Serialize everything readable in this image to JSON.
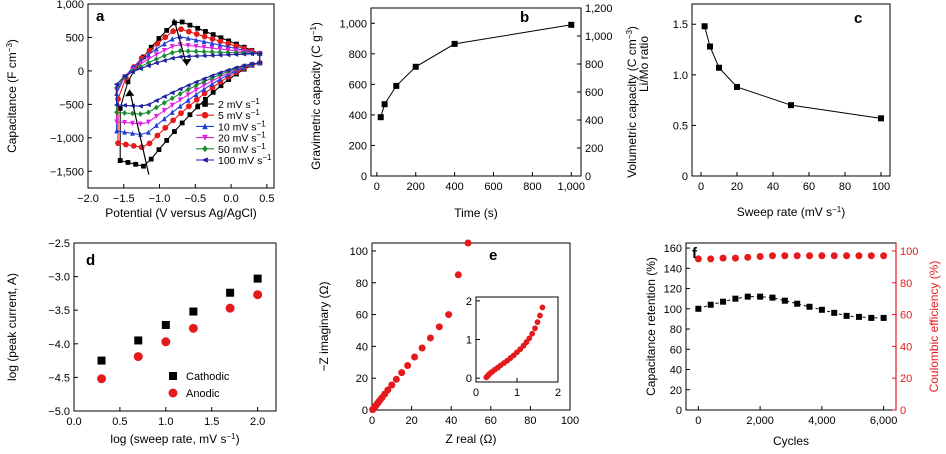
{
  "chart_data": [
    {
      "panel": "a",
      "type": "line",
      "xlabel": "Potential (V versus Ag/AgCl)",
      "ylabel": "Capacitance (F cm",
      "ylabel_sup": "−3",
      "ylabel_close": ")",
      "xlim": [
        -2.0,
        0.6
      ],
      "ylim": [
        -1750,
        1000
      ],
      "xticks": [
        -2.0,
        -1.5,
        -1.0,
        -0.5,
        0.0,
        0.5
      ],
      "xtick_labels": [
        "−2.0",
        "−1.5",
        "−1.0",
        "−0.5",
        "0.0",
        "0.5"
      ],
      "yticks": [
        1000,
        500,
        0,
        -500,
        -1000,
        -1500
      ],
      "ytick_labels": [
        "1,000",
        "500",
        "0",
        "−500",
        "−1,000",
        "−1,500"
      ],
      "legend_position": "bottom-right",
      "series": [
        {
          "name": "2 mV s",
          "sup": "−1",
          "color": "#000000",
          "marker": "square",
          "upper_peak": 760,
          "lower_peak": -1430,
          "lower_end": -1340,
          "start_up": -560,
          "x_min": -1.55
        },
        {
          "name": "5 mV s",
          "sup": "−1",
          "color": "#e41a1c",
          "marker": "circle",
          "upper_peak": 640,
          "lower_peak": -1150,
          "lower_end": -1080,
          "start_up": -420,
          "x_min": -1.58
        },
        {
          "name": "10 mV s",
          "sup": "−1",
          "color": "#1f3ed8",
          "marker": "triangle",
          "upper_peak": 520,
          "lower_peak": -960,
          "lower_end": -900,
          "start_up": -340,
          "x_min": -1.6
        },
        {
          "name": "20 mV s",
          "sup": "−1",
          "color": "#e020e0",
          "marker": "triangle-down",
          "upper_peak": 400,
          "lower_peak": -800,
          "lower_end": -760,
          "start_up": -290,
          "x_min": -1.6
        },
        {
          "name": "50 mV s",
          "sup": "−1",
          "color": "#1a8a30",
          "marker": "diamond",
          "upper_peak": 300,
          "lower_peak": -650,
          "lower_end": -620,
          "start_up": -250,
          "x_min": -1.6
        },
        {
          "name": "100 mV s",
          "sup": "−1",
          "color": "#2020a0",
          "marker": "triangle-left",
          "upper_peak": 210,
          "lower_peak": -530,
          "lower_end": -510,
          "start_up": -200,
          "x_min": -1.6
        }
      ]
    },
    {
      "panel": "b",
      "type": "line",
      "xlabel": "Time (s)",
      "ylabel": "Gravimetric capacity (C g",
      "ylabel_sup": "−1",
      "ylabel_close": ")",
      "ylabel_right": "Volumetric capacity (C cm",
      "ylabel_right_sup": "−3",
      "ylabel_right_close": ")",
      "xlim": [
        -30,
        1050
      ],
      "ylim": [
        0,
        1100
      ],
      "ylim_right": [
        0,
        1200
      ],
      "xticks": [
        0,
        200,
        400,
        600,
        800,
        1000
      ],
      "xtick_labels": [
        "0",
        "200",
        "400",
        "600",
        "800",
        "1,000"
      ],
      "yticks": [
        0,
        200,
        400,
        600,
        800,
        1000
      ],
      "ytick_labels": [
        "0",
        "200",
        "400",
        "600",
        "800",
        "1,000"
      ],
      "yticks_right": [
        0,
        200,
        400,
        600,
        800,
        1000,
        1200
      ],
      "ytick_labels_right": [
        "0",
        "200",
        "400",
        "600",
        "800",
        "1,000",
        "1,200"
      ],
      "x": [
        20,
        40,
        100,
        200,
        400,
        1000
      ],
      "values": [
        385,
        470,
        590,
        715,
        865,
        990
      ]
    },
    {
      "panel": "c",
      "type": "line",
      "xlabel": "Sweep rate (mV s",
      "xlabel_sup": "−1",
      "xlabel_close": ")",
      "ylabel": "Li/Mo ratio",
      "xlim": [
        -5,
        105
      ],
      "ylim": [
        0,
        1.7
      ],
      "xticks": [
        0,
        20,
        40,
        60,
        80,
        100
      ],
      "xtick_labels": [
        "0",
        "20",
        "40",
        "60",
        "80",
        "100"
      ],
      "yticks": [
        0,
        0.5,
        1.0,
        1.5
      ],
      "ytick_labels": [
        "0",
        "0.5",
        "1.0",
        "1.5"
      ],
      "x": [
        2,
        5,
        10,
        20,
        50,
        100
      ],
      "values": [
        1.48,
        1.28,
        1.07,
        0.88,
        0.7,
        0.57
      ]
    },
    {
      "panel": "d",
      "type": "scatter",
      "xlabel": "log (sweep rate, mV s",
      "xlabel_sup": "−1",
      "xlabel_close": ")",
      "ylabel": "log (peak current, A)",
      "xlim": [
        0,
        2.2
      ],
      "ylim": [
        -5.0,
        -2.5
      ],
      "xticks": [
        0,
        0.5,
        1.0,
        1.5,
        2.0
      ],
      "xtick_labels": [
        "0.0",
        "0.5",
        "1.0",
        "1.5",
        "2.0"
      ],
      "yticks": [
        -2.5,
        -3.0,
        -3.5,
        -4.0,
        -4.5,
        -5.0
      ],
      "ytick_labels": [
        "−2.5",
        "−3.0",
        "−3.5",
        "−4.0",
        "−4.5",
        "−5.0"
      ],
      "legend_position": "bottom-right",
      "series": [
        {
          "name": "Cathodic",
          "color": "#000000",
          "marker": "square",
          "x": [
            0.3,
            0.7,
            1.0,
            1.3,
            1.7,
            2.0
          ],
          "values": [
            -4.25,
            -3.95,
            -3.72,
            -3.52,
            -3.24,
            -3.03
          ]
        },
        {
          "name": "Anodic",
          "color": "#e41a1c",
          "marker": "circle",
          "x": [
            0.3,
            0.7,
            1.0,
            1.3,
            1.7,
            2.0
          ],
          "values": [
            -4.52,
            -4.19,
            -3.97,
            -3.77,
            -3.47,
            -3.27
          ]
        }
      ]
    },
    {
      "panel": "e",
      "type": "scatter",
      "xlabel": "Z real (Ω)",
      "ylabel": "−Z imaginary (Ω)",
      "xlim": [
        0,
        100
      ],
      "ylim": [
        0,
        105
      ],
      "xticks": [
        0,
        20,
        40,
        60,
        80,
        100
      ],
      "xtick_labels": [
        "0",
        "20",
        "40",
        "60",
        "80",
        "100"
      ],
      "yticks": [
        0,
        20,
        40,
        60,
        80,
        100
      ],
      "ytick_labels": [
        "0",
        "20",
        "40",
        "60",
        "80",
        "100"
      ],
      "color": "#e41a1c",
      "x": [
        0.3,
        0.6,
        1.0,
        1.5,
        2.1,
        2.9,
        3.8,
        5.0,
        6.4,
        8.0,
        10.0,
        12.3,
        15.0,
        18.0,
        21.5,
        25.3,
        29.5,
        34.0,
        38.7,
        43.6,
        48.5
      ],
      "values": [
        0.2,
        0.6,
        1.2,
        2.0,
        3.0,
        4.3,
        5.8,
        7.7,
        10.0,
        12.6,
        15.7,
        19.3,
        23.5,
        28.0,
        33.3,
        39.0,
        45.3,
        52.3,
        60.0,
        85.0,
        105.0
      ],
      "inset": {
        "xlim": [
          0,
          2
        ],
        "ylim": [
          -0.1,
          2.1
        ],
        "xticks": [
          0,
          1,
          2
        ],
        "xtick_labels": [
          "0",
          "1",
          "2"
        ],
        "yticks": [
          0,
          1,
          2
        ],
        "ytick_labels": [
          "0",
          "1",
          "2"
        ],
        "x": [
          0.25,
          0.28,
          0.31,
          0.35,
          0.4,
          0.46,
          0.53,
          0.6,
          0.68,
          0.76,
          0.84,
          0.92,
          1.0,
          1.08,
          1.16,
          1.23,
          1.3,
          1.37,
          1.44,
          1.5,
          1.56,
          1.62
        ],
        "values": [
          0.02,
          0.05,
          0.09,
          0.13,
          0.17,
          0.22,
          0.27,
          0.33,
          0.39,
          0.45,
          0.52,
          0.59,
          0.67,
          0.75,
          0.84,
          0.93,
          1.03,
          1.15,
          1.29,
          1.45,
          1.62,
          1.83
        ]
      }
    },
    {
      "panel": "f",
      "type": "line",
      "xlabel": "Cycles",
      "ylabel": "Capacitance retention (%)",
      "ylabel_right": "Coulombic efficiency (%)",
      "xlim": [
        -400,
        6400
      ],
      "ylim": [
        0,
        165
      ],
      "ylim_right": [
        0,
        105
      ],
      "xticks": [
        0,
        2000,
        4000,
        6000
      ],
      "xtick_labels": [
        "0",
        "2,000",
        "4,000",
        "6,000"
      ],
      "yticks": [
        0,
        20,
        40,
        60,
        80,
        100,
        120,
        140,
        160
      ],
      "ytick_labels": [
        "0",
        "20",
        "40",
        "60",
        "80",
        "100",
        "120",
        "140",
        "160"
      ],
      "yticks_right": [
        0,
        20,
        40,
        60,
        80,
        100
      ],
      "ytick_labels_right": [
        "0",
        "20",
        "40",
        "60",
        "80",
        "100"
      ],
      "right_axis_color": "#e41a1c",
      "series": [
        {
          "name": "Capacitance retention",
          "axis": "left",
          "color": "#000000",
          "marker": "square",
          "x": [
            0,
            400,
            800,
            1200,
            1600,
            2000,
            2400,
            2800,
            3200,
            3600,
            4000,
            4400,
            4800,
            5200,
            5600,
            6000
          ],
          "values": [
            100,
            104,
            107,
            110,
            112,
            112,
            111,
            108,
            105,
            102,
            99,
            96,
            93,
            92,
            91,
            91
          ]
        },
        {
          "name": "Coulombic efficiency",
          "axis": "right",
          "color": "#e41a1c",
          "marker": "circle",
          "x": [
            0,
            400,
            800,
            1200,
            1600,
            2000,
            2400,
            2800,
            3200,
            3600,
            4000,
            4400,
            4800,
            5200,
            5600,
            6000
          ],
          "values": [
            95,
            95,
            95.5,
            95.5,
            96,
            96.5,
            97,
            97,
            97,
            97,
            97,
            97,
            97,
            97,
            97,
            97
          ]
        }
      ]
    }
  ]
}
